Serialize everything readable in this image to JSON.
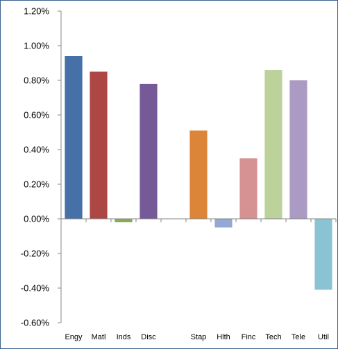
{
  "chart_data": {
    "type": "bar",
    "title": "",
    "xlabel": "",
    "ylabel": "",
    "categories": [
      "Engy",
      "Matl",
      "Inds",
      "Disc",
      "",
      "Stap",
      "Hlth",
      "Finc",
      "Tech",
      "Tele",
      "Util"
    ],
    "values": [
      0.94,
      0.85,
      -0.02,
      0.78,
      null,
      0.51,
      -0.05,
      0.35,
      0.86,
      0.8,
      -0.41
    ],
    "colors": [
      "#4570a8",
      "#ad4743",
      "#8aab4f",
      "#755a97",
      null,
      "#dc8438",
      "#93a8d2",
      "#d69292",
      "#bcd29a",
      "#ab9bc4",
      "#8ac4d4"
    ],
    "ylim": [
      -0.6,
      1.2
    ],
    "yticks": [
      1.2,
      1.0,
      0.8,
      0.6,
      0.4,
      0.2,
      0.0,
      -0.2,
      -0.4,
      -0.6
    ],
    "ytick_labels": [
      "1.20%",
      "1.00%",
      "0.80%",
      "0.60%",
      "0.40%",
      "0.20%",
      "0.00%",
      "-0.20%",
      "-0.40%",
      "-0.60%"
    ],
    "value_unit": "%",
    "grid": false,
    "legend": "none",
    "axis_color": "#868686"
  }
}
